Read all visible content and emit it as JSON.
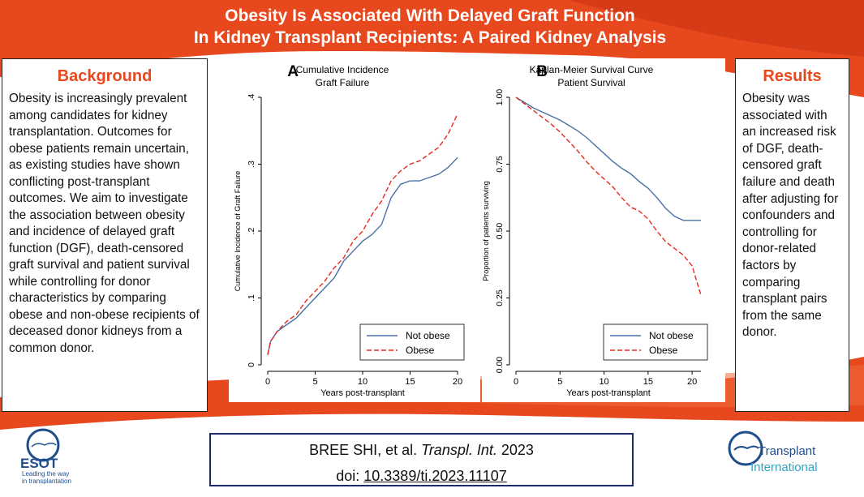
{
  "header": {
    "title_line1": "Obesity Is Associated With Delayed Graft Function",
    "title_line2": "In Kidney Transplant Recipients: A Paired Kidney Analysis"
  },
  "background_box": {
    "heading": "Background",
    "text": "Obesity is increasingly prevalent among candidates for kidney transplantation. Outcomes for obese patients remain uncertain, as existing studies have shown conflicting post-transplant outcomes. We aim to investigate the association between obesity and incidence of delayed graft function (DGF), death-censored graft survival and patient survival while controlling for donor characteristics by comparing obese and non-obese recipients of deceased donor kidneys from a common donor."
  },
  "results_box": {
    "heading": "Results",
    "text": "Obesity was associated with an increased risk of DGF, death-censored graft failure and death after adjusting for confounders and controlling for donor-related factors by comparing transplant pairs from the same donor."
  },
  "citation": {
    "authors": "BREE SHI, et al.",
    "journal": "Transpl. Int.",
    "year": "2023",
    "doi_prefix": "doi:",
    "doi": "10.3389/ti.2023.11107"
  },
  "logos": {
    "esot_name": "ESOT",
    "esot_tagline1": "Leading the way",
    "esot_tagline2": "in transplantation",
    "ti_line1": "Transplant",
    "ti_line2": "International"
  },
  "colors": {
    "accent_orange": "#e8481e",
    "not_obese": "#4a6fa5",
    "obese": "#e8281e",
    "cite_border": "#1f2a6b"
  },
  "chart_data": [
    {
      "type": "line",
      "panel_letter": "A",
      "title": "Cumulative Incidence",
      "subtitle": "Graft Failure",
      "xlabel": "Years post-transplant",
      "ylabel": "Cumulative Incidence of Graft Failure",
      "xlim": [
        0,
        20
      ],
      "ylim": [
        0,
        0.4
      ],
      "xticks": [
        "0",
        "5",
        "10",
        "15",
        "20"
      ],
      "yticks": [
        "0",
        ".1",
        ".2",
        ".3",
        ".4"
      ],
      "legend_position": "bottom-right",
      "series": [
        {
          "name": "Not obese",
          "style": "solid",
          "x": [
            0,
            0.3,
            1,
            2,
            3,
            4,
            5,
            6,
            7,
            8,
            9,
            10,
            11,
            12,
            13,
            14,
            15,
            16,
            17,
            18,
            19,
            20
          ],
          "y": [
            0.015,
            0.035,
            0.05,
            0.06,
            0.07,
            0.085,
            0.1,
            0.115,
            0.13,
            0.155,
            0.17,
            0.185,
            0.195,
            0.21,
            0.25,
            0.27,
            0.275,
            0.275,
            0.28,
            0.285,
            0.295,
            0.31
          ]
        },
        {
          "name": "Obese",
          "style": "dashed",
          "x": [
            0,
            0.3,
            1,
            2,
            3,
            4,
            5,
            6,
            7,
            8,
            9,
            10,
            11,
            12,
            13,
            14,
            15,
            16,
            17,
            18,
            19,
            20
          ],
          "y": [
            0.015,
            0.035,
            0.05,
            0.065,
            0.075,
            0.095,
            0.11,
            0.125,
            0.145,
            0.16,
            0.185,
            0.2,
            0.225,
            0.245,
            0.275,
            0.29,
            0.3,
            0.305,
            0.315,
            0.325,
            0.345,
            0.375
          ]
        }
      ]
    },
    {
      "type": "line",
      "panel_letter": "B",
      "title": "Kaplan-Meier Survival Curve",
      "subtitle": "Patient Survival",
      "xlabel": "Years post-transplant",
      "ylabel": "Proportion of patients surviving",
      "xlim": [
        0,
        21
      ],
      "ylim": [
        0,
        1
      ],
      "xticks": [
        "0",
        "5",
        "10",
        "15",
        "20"
      ],
      "yticks": [
        "0.00",
        "0.25",
        "0.50",
        "0.75",
        "1.00"
      ],
      "legend_position": "bottom-right",
      "series": [
        {
          "name": "Not obese",
          "style": "solid",
          "x": [
            0,
            1,
            2,
            3,
            4,
            5,
            6,
            7,
            8,
            9,
            10,
            11,
            12,
            13,
            14,
            15,
            16,
            17,
            18,
            19,
            20,
            21
          ],
          "y": [
            1.0,
            0.98,
            0.96,
            0.945,
            0.93,
            0.915,
            0.895,
            0.875,
            0.85,
            0.82,
            0.79,
            0.76,
            0.735,
            0.715,
            0.685,
            0.66,
            0.625,
            0.585,
            0.555,
            0.54,
            0.54,
            0.54
          ]
        },
        {
          "name": "Obese",
          "style": "dashed",
          "x": [
            0,
            1,
            2,
            3,
            4,
            5,
            6,
            7,
            8,
            9,
            10,
            11,
            12,
            13,
            14,
            15,
            16,
            17,
            18,
            19,
            20,
            21
          ],
          "y": [
            1.0,
            0.975,
            0.95,
            0.925,
            0.9,
            0.87,
            0.835,
            0.8,
            0.76,
            0.725,
            0.695,
            0.665,
            0.625,
            0.59,
            0.575,
            0.545,
            0.5,
            0.46,
            0.435,
            0.41,
            0.37,
            0.26
          ]
        }
      ]
    }
  ]
}
